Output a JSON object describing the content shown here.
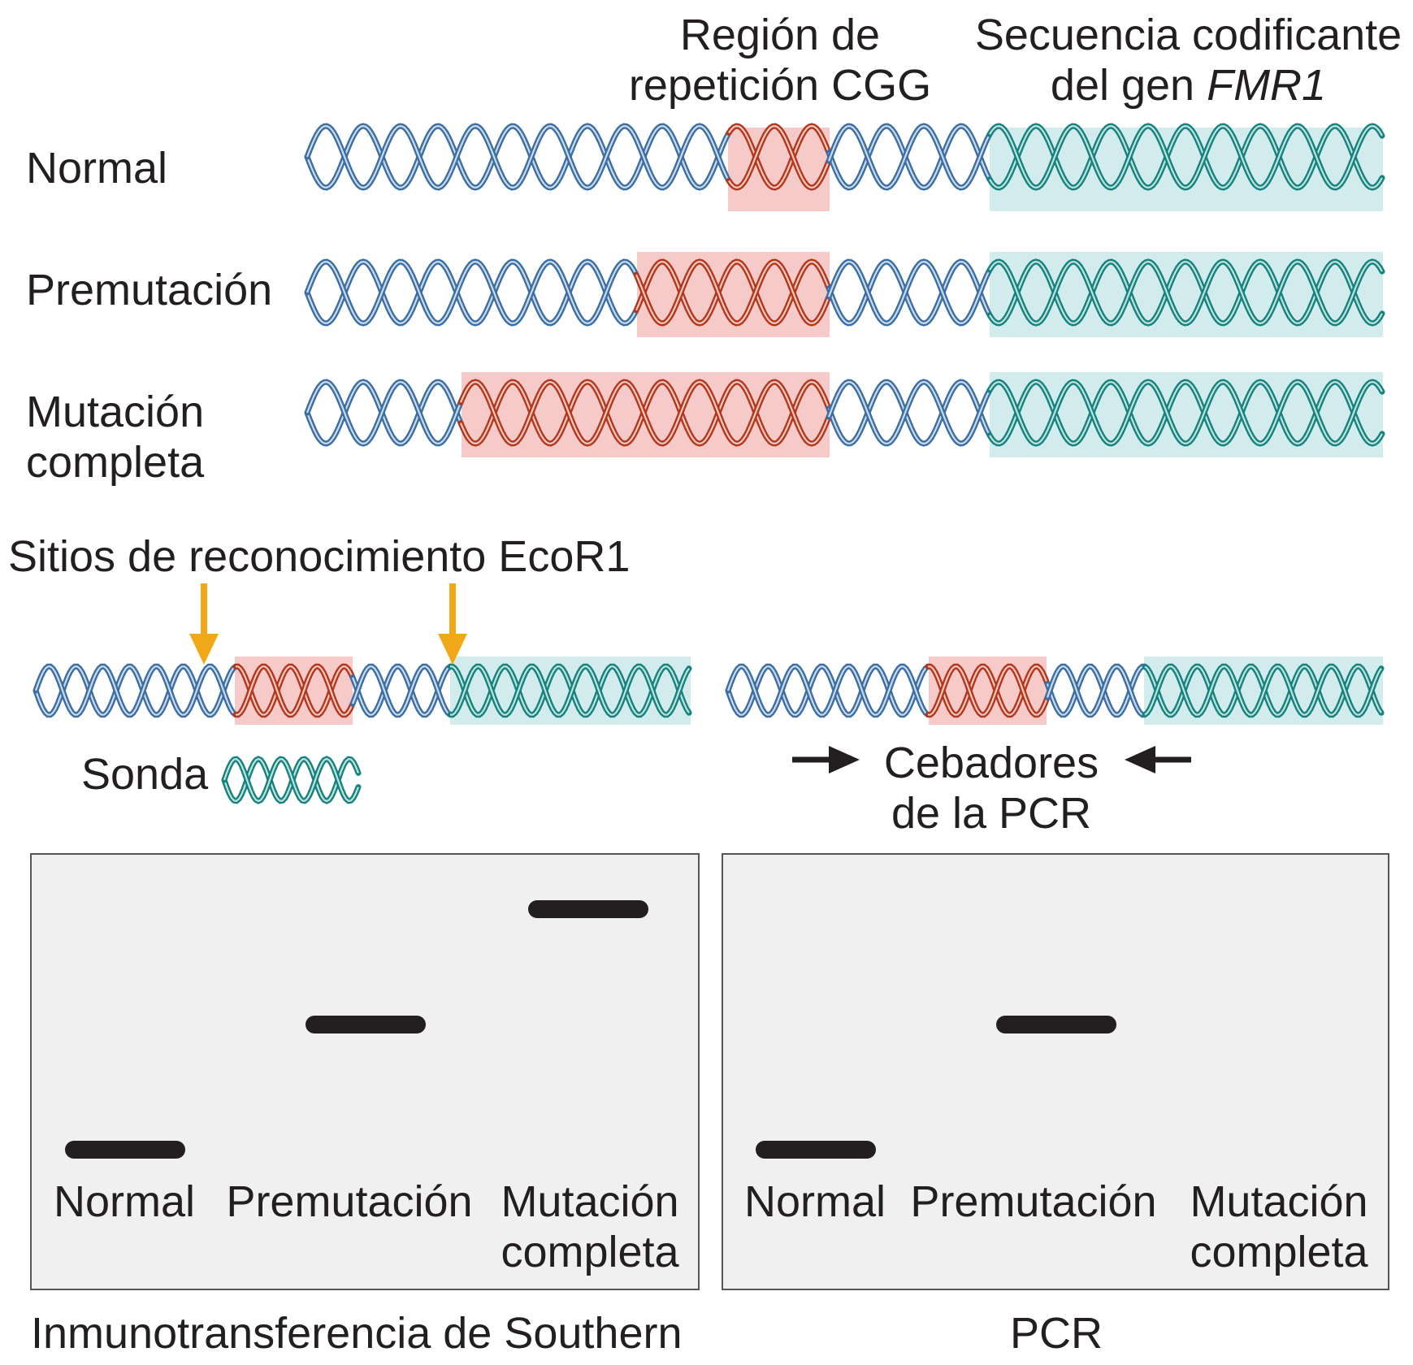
{
  "header": {
    "cgg_region_line1": "Región de",
    "cgg_region_line2": "repetición CGG",
    "coding_line1": "Secuencia codificante",
    "coding_line2_prefix": "del gen ",
    "coding_gene": "FMR1"
  },
  "rows": [
    {
      "label": "Normal"
    },
    {
      "label": "Premutación"
    },
    {
      "label_line1": "Mutación",
      "label_line2": "completa"
    }
  ],
  "middle": {
    "ecor1_label": "Sitios de reconocimiento EcoR1",
    "probe_label": "Sonda",
    "primers_line1": "Cebadores",
    "primers_line2": "de la PCR"
  },
  "gels": {
    "southern": {
      "title": "Inmunotransferencia de Southern",
      "lanes": [
        "Normal",
        "Premutación"
      ],
      "lane3_line1": "Mutación",
      "lane3_line2": "completa",
      "band_relative_heights": [
        0.22,
        0.58,
        0.91
      ]
    },
    "pcr": {
      "title": "PCR",
      "lanes": [
        "Normal",
        "Premutación"
      ],
      "lane3_line1": "Mutación",
      "lane3_line2": "completa",
      "band_relative_heights": [
        0.22,
        0.58,
        null
      ]
    }
  },
  "colors": {
    "dna_blue": "#3a6ea5",
    "dna_red": "#b5361b",
    "dna_teal": "#14837e",
    "cgg_highlight": "#f7caca",
    "coding_highlight": "#d2ecee",
    "arrow_orange": "#f0a818",
    "gel_background": "#f0f0f0",
    "band": "#231f20"
  }
}
